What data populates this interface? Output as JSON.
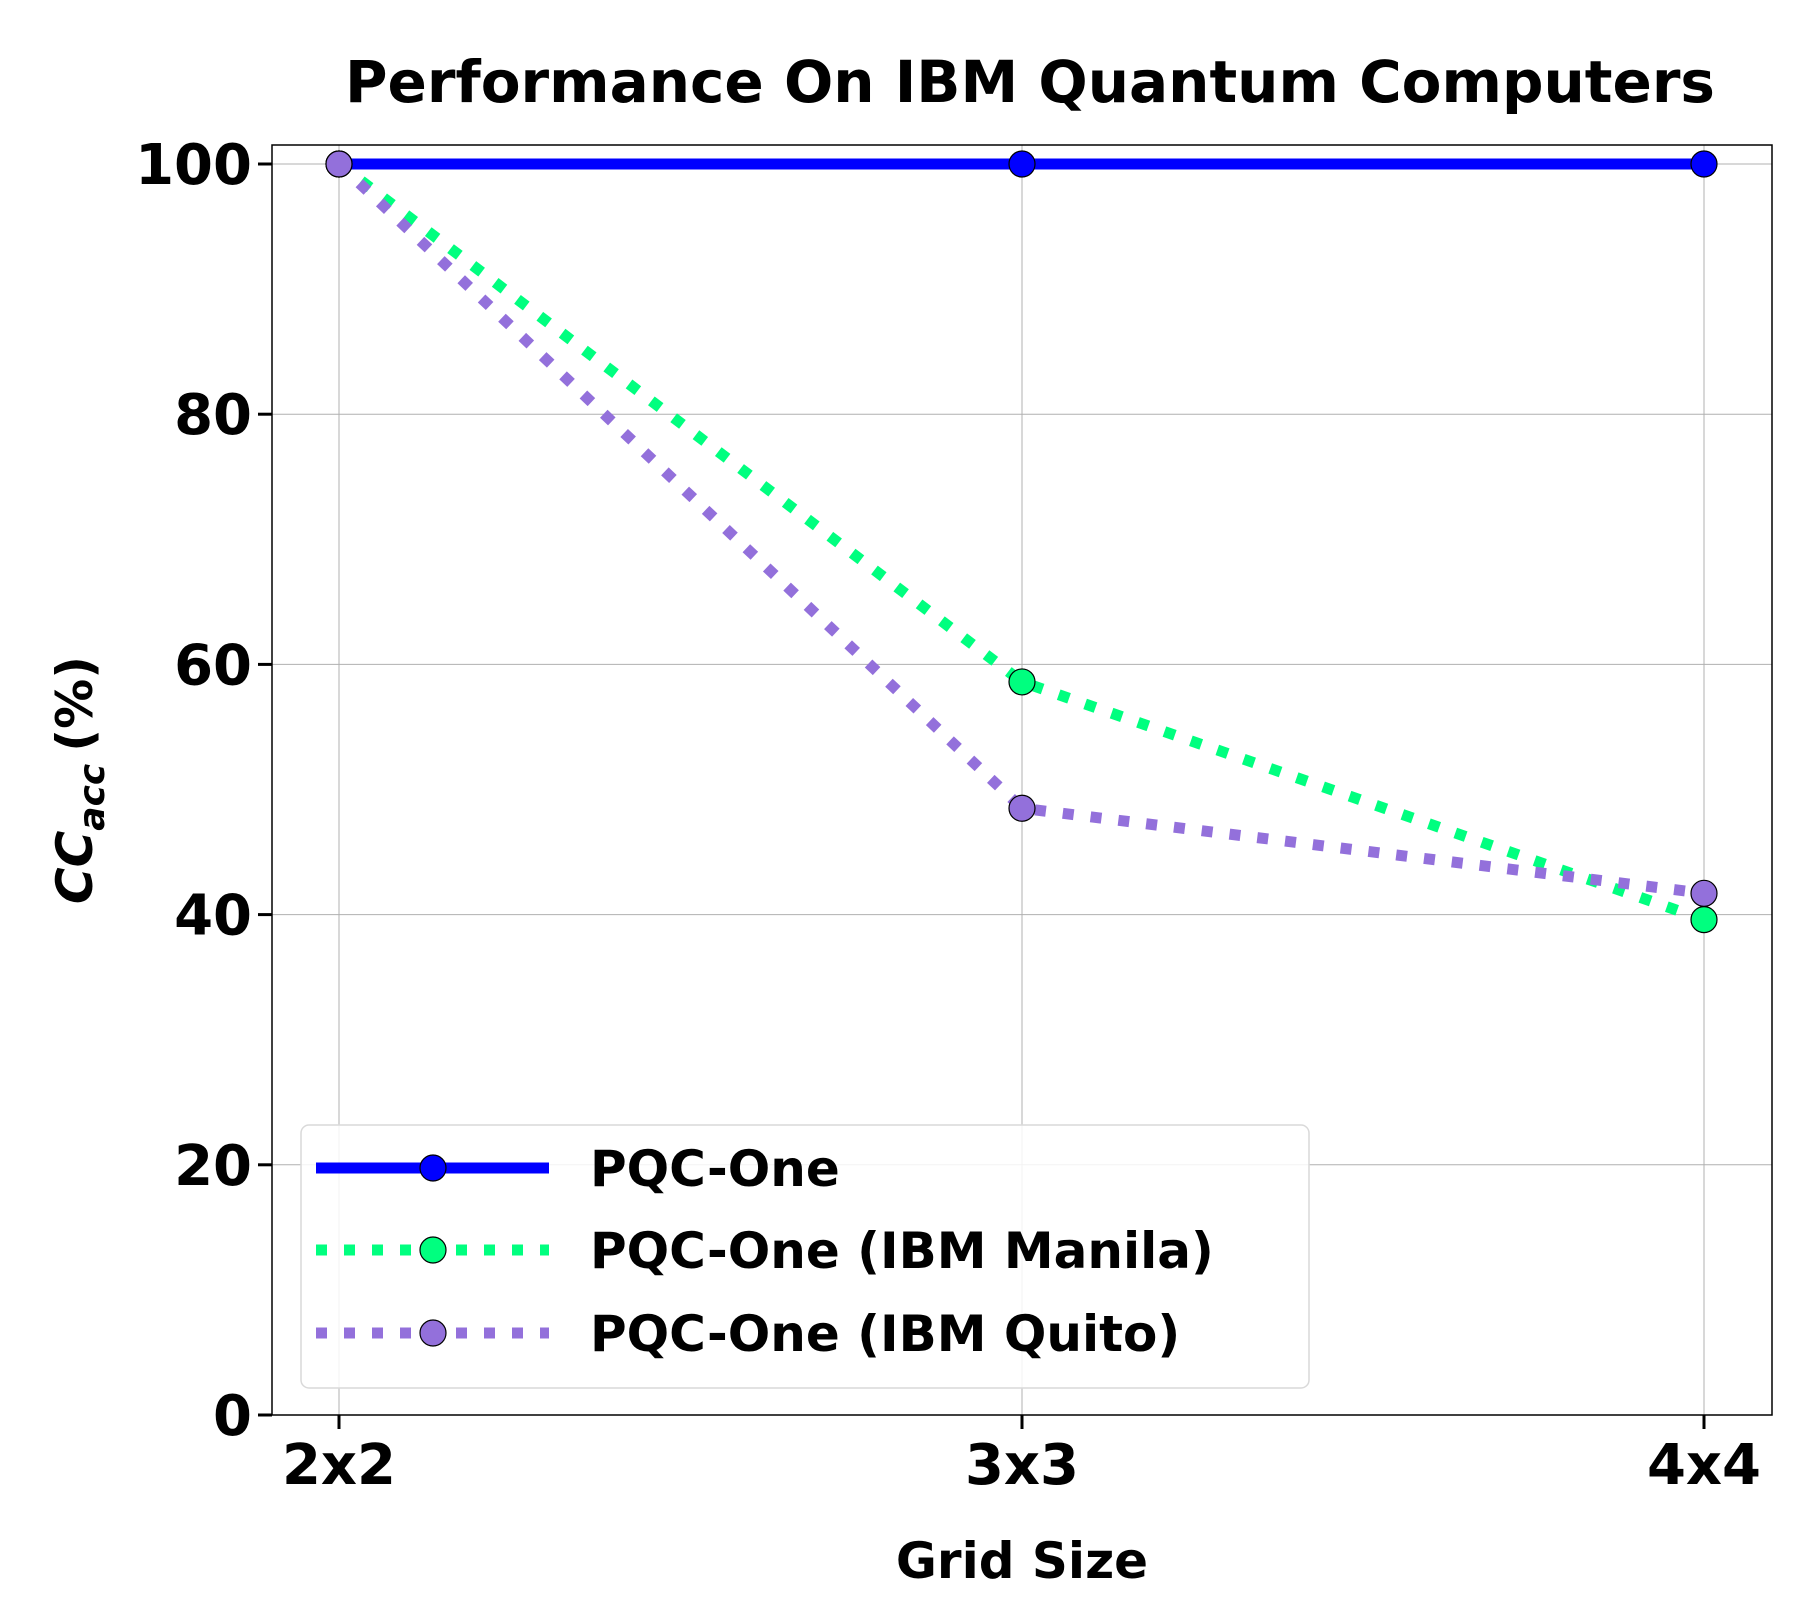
{
  "chart_data": {
    "type": "line",
    "title": "Performance On IBM Quantum Computers",
    "xlabel": "Grid Size",
    "ylabel": "(%)",
    "ylabel_symbol": "CC",
    "ylabel_subscript": "acc",
    "categories": [
      "2x2",
      "3x3",
      "4x4"
    ],
    "ylim": [
      0,
      100
    ],
    "yticks": [
      "0",
      "20",
      "40",
      "60",
      "80",
      "100"
    ],
    "grid": true,
    "legend_position": "lower-left",
    "series": [
      {
        "name": "PQC-One",
        "values": [
          100,
          100,
          100
        ],
        "color": "#0000ff",
        "style": "solid"
      },
      {
        "name": "PQC-One (IBM Manila)",
        "values": [
          100,
          58.6,
          39.6
        ],
        "color": "#00ff7f",
        "style": "dotted"
      },
      {
        "name": "PQC-One (IBM Quito)",
        "values": [
          100,
          48.5,
          41.7
        ],
        "color": "#9370db",
        "style": "dotted"
      }
    ]
  }
}
